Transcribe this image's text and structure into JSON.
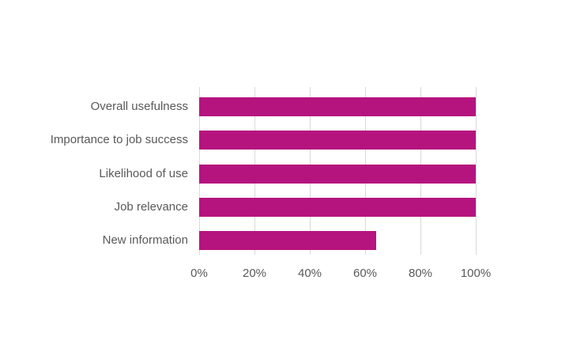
{
  "chart_data": {
    "type": "bar",
    "orientation": "horizontal",
    "title": "",
    "xlabel": "",
    "ylabel": "",
    "categories": [
      "Overall usefulness",
      "Importance to job success",
      "Likelihood of use",
      "Job relevance",
      "New information"
    ],
    "values": [
      100,
      100,
      100,
      100,
      64
    ],
    "xlim": [
      0,
      100
    ],
    "xticks": [
      0,
      20,
      40,
      60,
      80,
      100
    ],
    "xtick_labels": [
      "0%",
      "20%",
      "40%",
      "60%",
      "80%",
      "100%"
    ],
    "grid": "vertical-only",
    "legend": "none",
    "colors": {
      "bar": "#B5147F",
      "gridline": "#D9D9D9",
      "text": "#595959",
      "background": "#FFFFFF"
    }
  }
}
